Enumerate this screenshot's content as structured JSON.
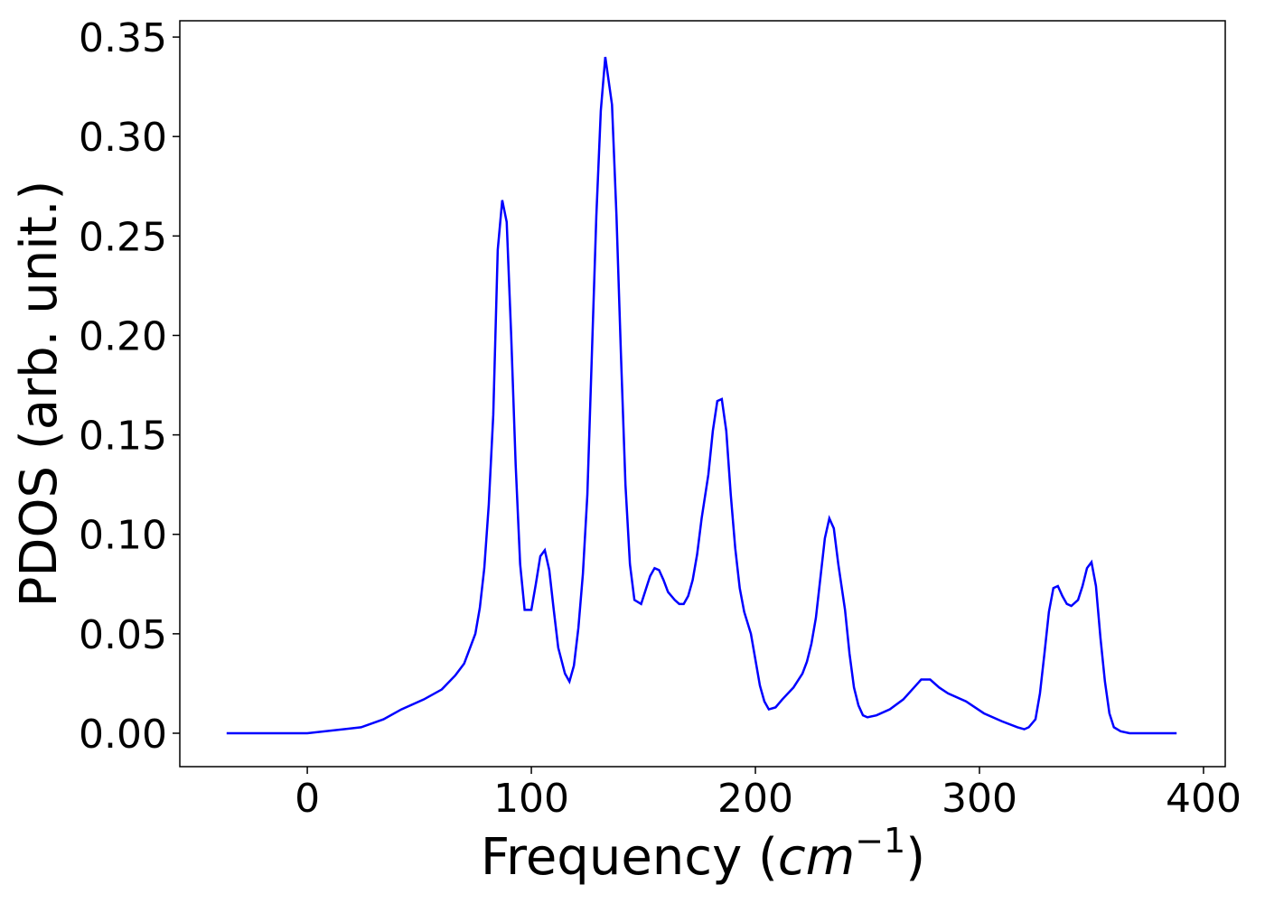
{
  "chart_data": {
    "type": "line",
    "xlabel": [
      "Frequency (",
      "cm",
      "−1",
      ")"
    ],
    "ylabel": "PDOS (arb. unit.)",
    "xlim": [
      -56.9,
      409.7
    ],
    "ylim": [
      -0.0168,
      0.3582
    ],
    "xticks": [
      0,
      100,
      200,
      300,
      400
    ],
    "yticks": [
      {
        "value": 0,
        "label": "0.00"
      },
      {
        "value": 0.05,
        "label": "0.05"
      },
      {
        "value": 0.1,
        "label": "0.10"
      },
      {
        "value": 0.15,
        "label": "0.15"
      },
      {
        "value": 0.2,
        "label": "0.20"
      },
      {
        "value": 0.25,
        "label": "0.25"
      },
      {
        "value": 0.3,
        "label": "0.30"
      },
      {
        "value": 0.35,
        "label": "0.35"
      }
    ],
    "grid": false,
    "x": [
      -36,
      0,
      24,
      34,
      42,
      52,
      60,
      66,
      70,
      72,
      75,
      77,
      79,
      81,
      83,
      85,
      87,
      89,
      91,
      93,
      95,
      97,
      100,
      102,
      104,
      106,
      108,
      110,
      112,
      115,
      117,
      119,
      121,
      123,
      125,
      127,
      129,
      131,
      133,
      136,
      138,
      140,
      142,
      144,
      146,
      149,
      151,
      153,
      155,
      157,
      159,
      161,
      164,
      166,
      168,
      170,
      172,
      174,
      176,
      179,
      181,
      183,
      185,
      187,
      189,
      191,
      193,
      195,
      198,
      200,
      202,
      204,
      206,
      209,
      212,
      217,
      221,
      223,
      225,
      227,
      229,
      231,
      233,
      235,
      237,
      240,
      242,
      244,
      246,
      248,
      250,
      254,
      260,
      266,
      270,
      274,
      278,
      282,
      286,
      294,
      302,
      310,
      317,
      320,
      322,
      325,
      327,
      329,
      331,
      333,
      335,
      337,
      339,
      341,
      344,
      346,
      348,
      350,
      352,
      354,
      356,
      358,
      360,
      363,
      367,
      388
    ],
    "series": [
      {
        "name": "PDOS",
        "color": "#0000ff",
        "values": [
          0,
          0,
          0.003,
          0.007,
          0.012,
          0.017,
          0.022,
          0.029,
          0.035,
          0.041,
          0.05,
          0.063,
          0.083,
          0.115,
          0.16,
          0.243,
          0.268,
          0.257,
          0.2,
          0.135,
          0.085,
          0.062,
          0.062,
          0.075,
          0.089,
          0.092,
          0.082,
          0.062,
          0.043,
          0.03,
          0.026,
          0.034,
          0.053,
          0.08,
          0.12,
          0.19,
          0.26,
          0.313,
          0.34,
          0.316,
          0.26,
          0.19,
          0.125,
          0.085,
          0.067,
          0.065,
          0.072,
          0.079,
          0.083,
          0.082,
          0.077,
          0.071,
          0.067,
          0.065,
          0.065,
          0.069,
          0.077,
          0.09,
          0.108,
          0.13,
          0.152,
          0.167,
          0.168,
          0.152,
          0.12,
          0.093,
          0.073,
          0.061,
          0.05,
          0.037,
          0.024,
          0.016,
          0.012,
          0.013,
          0.017,
          0.023,
          0.03,
          0.036,
          0.045,
          0.058,
          0.078,
          0.098,
          0.108,
          0.103,
          0.085,
          0.062,
          0.04,
          0.023,
          0.014,
          0.009,
          0.008,
          0.009,
          0.012,
          0.017,
          0.022,
          0.027,
          0.027,
          0.023,
          0.02,
          0.016,
          0.01,
          0.006,
          0.003,
          0.002,
          0.003,
          0.007,
          0.02,
          0.04,
          0.061,
          0.073,
          0.074,
          0.069,
          0.065,
          0.064,
          0.067,
          0.074,
          0.083,
          0.086,
          0.074,
          0.048,
          0.026,
          0.01,
          0.003,
          0.001,
          0,
          0
        ]
      }
    ]
  }
}
